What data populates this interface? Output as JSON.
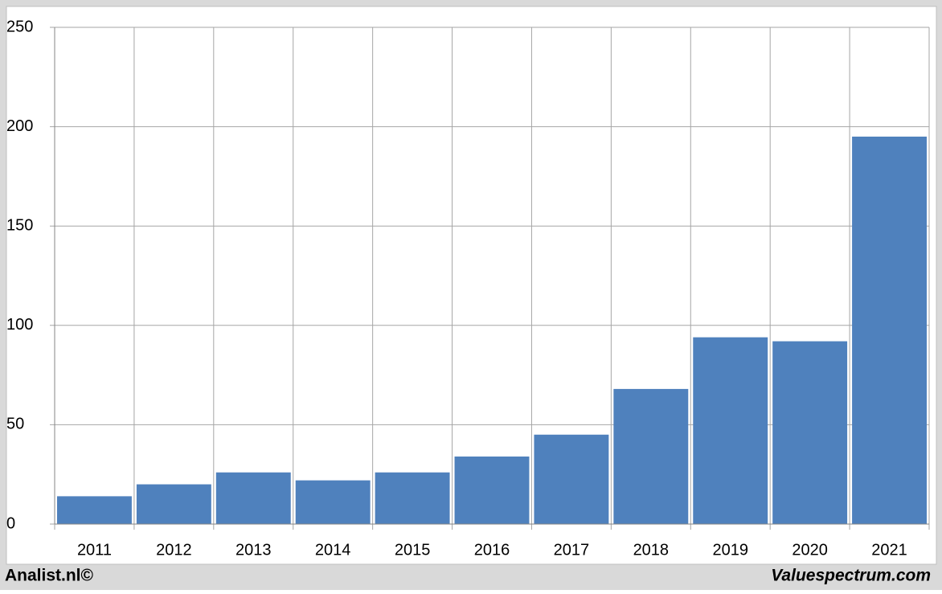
{
  "chart_data": {
    "type": "bar",
    "categories": [
      "2011",
      "2012",
      "2013",
      "2014",
      "2015",
      "2016",
      "2017",
      "2018",
      "2019",
      "2020",
      "2021"
    ],
    "values": [
      14,
      20,
      26,
      22,
      26,
      34,
      45,
      68,
      94,
      92,
      195
    ],
    "color": "#4f81bd",
    "ylim": [
      0,
      250
    ],
    "yticks": [
      0,
      50,
      100,
      150,
      200,
      250
    ],
    "grid": true,
    "footer_left": "Analist.nl©",
    "footer_right": "Valuespectrum.com"
  }
}
